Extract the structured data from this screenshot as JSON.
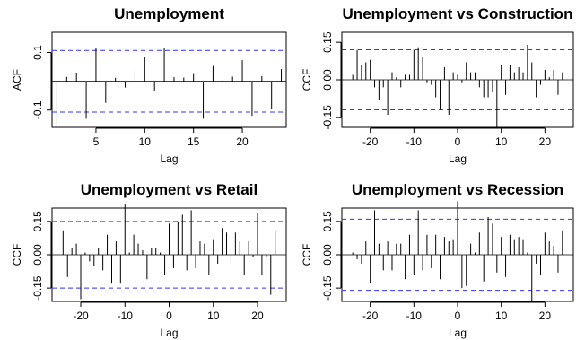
{
  "chart_data": [
    {
      "type": "bar",
      "title": "Unemployment",
      "xlabel": "Lag",
      "ylabel": "ACF",
      "xlim": [
        0.5,
        24.5
      ],
      "ylim": [
        -0.16,
        0.17
      ],
      "x_ticks": [
        5,
        10,
        15,
        20
      ],
      "y_ticks": [
        -0.1,
        0.1
      ],
      "y_tick_labels": [
        "-0.1",
        "0.1"
      ],
      "conf_limit": 0.107,
      "x": [
        1,
        2,
        3,
        4,
        5,
        6,
        7,
        8,
        9,
        10,
        11,
        12,
        13,
        14,
        15,
        16,
        17,
        18,
        19,
        20,
        21,
        22,
        23,
        24
      ],
      "values": [
        -0.15,
        0.015,
        0.03,
        -0.13,
        0.117,
        -0.075,
        0.012,
        -0.022,
        0.035,
        0.083,
        -0.032,
        0.114,
        0.014,
        0.013,
        0.028,
        -0.13,
        0.053,
        0.004,
        0.016,
        0.073,
        -0.12,
        0.018,
        -0.095,
        0.042
      ]
    },
    {
      "type": "bar",
      "title": "Unemployment vs Construction",
      "xlabel": "Lag",
      "ylabel": "CCF",
      "xlim": [
        -26.5,
        26.5
      ],
      "ylim": [
        -0.19,
        0.19
      ],
      "x_ticks": [
        -20,
        -10,
        0,
        10,
        20
      ],
      "y_ticks": [
        -0.15,
        0.0,
        0.15
      ],
      "y_tick_labels": [
        "-0.15",
        "0.00",
        "0.15"
      ],
      "conf_limit": 0.12,
      "x": [
        -24,
        -23,
        -22,
        -21,
        -20,
        -19,
        -18,
        -17,
        -16,
        -15,
        -14,
        -13,
        -12,
        -11,
        -10,
        -9,
        -8,
        -7,
        -6,
        -5,
        -4,
        -3,
        -2,
        -1,
        0,
        1,
        2,
        3,
        4,
        5,
        6,
        7,
        8,
        9,
        10,
        11,
        12,
        13,
        14,
        15,
        16,
        17,
        18,
        19,
        20,
        21,
        22,
        23,
        24
      ],
      "values": [
        0.02,
        0.12,
        0.06,
        0.07,
        0.08,
        -0.03,
        -0.08,
        -0.03,
        -0.14,
        0.03,
        0.01,
        -0.03,
        0.02,
        0.02,
        0.12,
        0.13,
        0.09,
        -0.01,
        -0.02,
        -0.07,
        -0.12,
        0.05,
        -0.14,
        0.03,
        0.02,
        -0.01,
        0.07,
        0.03,
        0.03,
        -0.03,
        -0.07,
        -0.07,
        -0.05,
        -0.19,
        0.06,
        -0.06,
        0.06,
        0.03,
        0.05,
        0.03,
        0.14,
        0.07,
        -0.07,
        -0.02,
        0.04,
        0.01,
        0.04,
        -0.06,
        0.03
      ]
    },
    {
      "type": "bar",
      "title": "Unemployment vs Retail",
      "xlabel": "Lag",
      "ylabel": "CCF",
      "xlim": [
        -26.5,
        26.5
      ],
      "ylim": [
        -0.21,
        0.21
      ],
      "x_ticks": [
        -20,
        -10,
        0,
        10,
        20
      ],
      "y_ticks": [
        -0.15,
        0.0,
        0.15
      ],
      "y_tick_labels": [
        "-0.15",
        "0.00",
        "0.15"
      ],
      "conf_limit": 0.15,
      "x": [
        -24,
        -23,
        -22,
        -21,
        -20,
        -19,
        -18,
        -17,
        -16,
        -15,
        -14,
        -13,
        -12,
        -11,
        -10,
        -9,
        -8,
        -7,
        -6,
        -5,
        -4,
        -3,
        -2,
        -1,
        0,
        1,
        2,
        3,
        4,
        5,
        6,
        7,
        8,
        9,
        10,
        11,
        12,
        13,
        14,
        15,
        16,
        17,
        18,
        19,
        20,
        21,
        22,
        23,
        24
      ],
      "values": [
        0.11,
        -0.1,
        0.03,
        0.05,
        -0.2,
        0.01,
        -0.03,
        -0.05,
        0.03,
        -0.07,
        0.09,
        -0.13,
        0.06,
        -0.13,
        0.23,
        0.01,
        0.09,
        0.05,
        0.02,
        -0.11,
        0.03,
        0.03,
        0.01,
        -0.09,
        0.14,
        -0.06,
        0.15,
        0.18,
        -0.07,
        0.2,
        -0.06,
        0.06,
        0.05,
        -0.09,
        0.07,
        -0.04,
        0.12,
        0.1,
        -0.04,
        0.1,
        0.06,
        -0.09,
        0.06,
        -0.01,
        0.19,
        -0.09,
        -0.01,
        -0.18,
        0.11
      ]
    },
    {
      "type": "bar",
      "title": "Unemployment vs Recession",
      "xlabel": "Lag",
      "ylabel": "CCF",
      "xlim": [
        -26.5,
        26.5
      ],
      "ylim": [
        -0.21,
        0.21
      ],
      "x_ticks": [
        -20,
        -10,
        0,
        10,
        20
      ],
      "y_ticks": [
        -0.15,
        0.0,
        0.15
      ],
      "y_tick_labels": [
        "-0.15",
        "0.00",
        "0.15"
      ],
      "conf_limit": 0.16,
      "x": [
        -24,
        -23,
        -22,
        -21,
        -20,
        -19,
        -18,
        -17,
        -16,
        -15,
        -14,
        -13,
        -12,
        -11,
        -10,
        -9,
        -8,
        -7,
        -6,
        -5,
        -4,
        -3,
        -2,
        -1,
        0,
        1,
        2,
        3,
        4,
        5,
        6,
        7,
        8,
        9,
        10,
        11,
        12,
        13,
        14,
        15,
        16,
        17,
        18,
        19,
        20,
        21,
        22,
        23,
        24
      ],
      "values": [
        0.01,
        -0.02,
        -0.04,
        0.06,
        -0.13,
        0.2,
        0.05,
        -0.07,
        0.06,
        -0.07,
        0.05,
        0.05,
        -0.11,
        0.09,
        -0.09,
        0.2,
        -0.07,
        0.09,
        -0.06,
        0.09,
        -0.11,
        0.08,
        0.06,
        0.07,
        0.24,
        -0.15,
        -0.14,
        0.05,
        0.01,
        0.1,
        -0.12,
        0.17,
        0.14,
        -0.08,
        0.08,
        -0.1,
        0.09,
        0.07,
        0.08,
        0.07,
        0.01,
        -0.21,
        -0.04,
        -0.09,
        0.1,
        0.06,
        0.04,
        -0.08,
        0.11
      ]
    }
  ]
}
